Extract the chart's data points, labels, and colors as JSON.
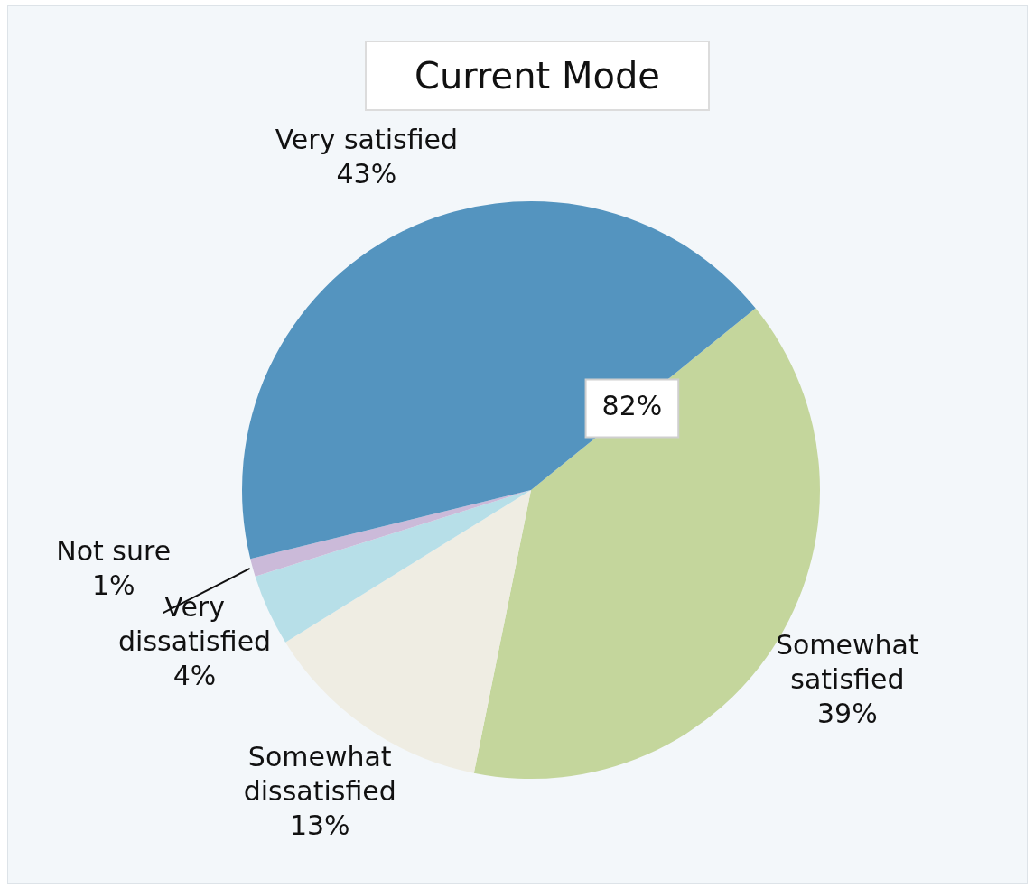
{
  "chart_data": {
    "type": "pie",
    "title": "Current Mode",
    "categories": [
      "Somewhat satisfied",
      "Somewhat dissatisfied",
      "Very dissatisfied",
      "Not sure",
      "Very satisfied"
    ],
    "values": [
      39,
      13,
      4,
      1,
      43
    ],
    "colors": [
      "#c4d69c",
      "#efede3",
      "#b7dfe8",
      "#cbbad9",
      "#5494bf"
    ],
    "value_labels": [
      "39%",
      "13%",
      "4%",
      "1%",
      "43%"
    ],
    "annotations": [
      "82%"
    ]
  }
}
